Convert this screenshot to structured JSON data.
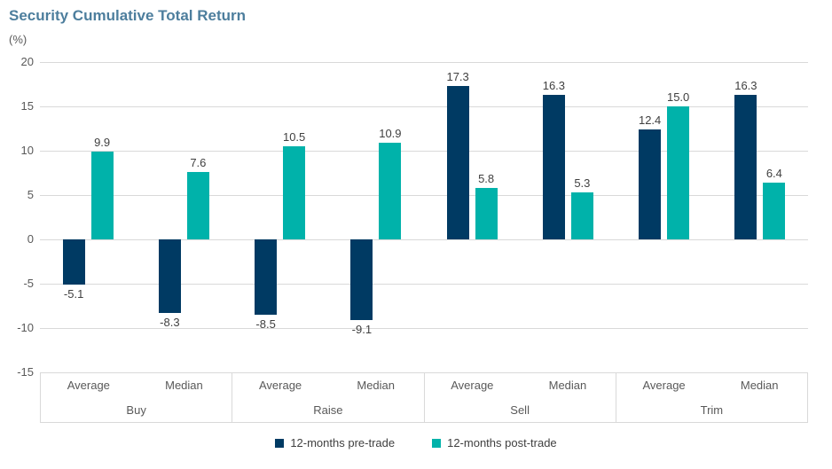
{
  "header": {
    "title": "Security Cumulative Total Return",
    "y_axis_unit": "(%)"
  },
  "colors": {
    "pre_trade": "#003a63",
    "post_trade": "#00b2aa",
    "title_text": "#4d7e9d",
    "gridline": "#d9d9d9",
    "axis_text": "#595959",
    "value_text": "#404040"
  },
  "chart_data": {
    "type": "bar",
    "title": "Security Cumulative Total Return",
    "ylabel": "(%)",
    "xlabel": "",
    "ylim": [
      -15,
      20
    ],
    "yticks": [
      20,
      15,
      10,
      5,
      0,
      -5,
      -10,
      -15
    ],
    "grid": true,
    "legend_position": "bottom",
    "groups": [
      "Buy",
      "Raise",
      "Sell",
      "Trim"
    ],
    "subcategories": [
      "Average",
      "Median"
    ],
    "categories": [
      "Buy Average",
      "Buy Median",
      "Raise Average",
      "Raise Median",
      "Sell Average",
      "Sell Median",
      "Trim Average",
      "Trim Median"
    ],
    "series": [
      {
        "name": "12-months pre-trade",
        "color": "#003a63",
        "values": [
          -5.1,
          -8.3,
          -8.5,
          -9.1,
          17.3,
          16.3,
          12.4,
          16.3
        ],
        "labels": [
          "-5.1",
          "-8.3",
          "-8.5",
          "-9.1",
          "17.3",
          "16.3",
          "12.4",
          "16.3"
        ]
      },
      {
        "name": "12-months post-trade",
        "color": "#00b2aa",
        "values": [
          9.9,
          7.6,
          10.5,
          10.9,
          5.8,
          5.3,
          15.0,
          6.4
        ],
        "labels": [
          "9.9",
          "7.6",
          "10.5",
          "10.9",
          "5.8",
          "5.3",
          "15.0",
          "6.4"
        ]
      }
    ]
  }
}
